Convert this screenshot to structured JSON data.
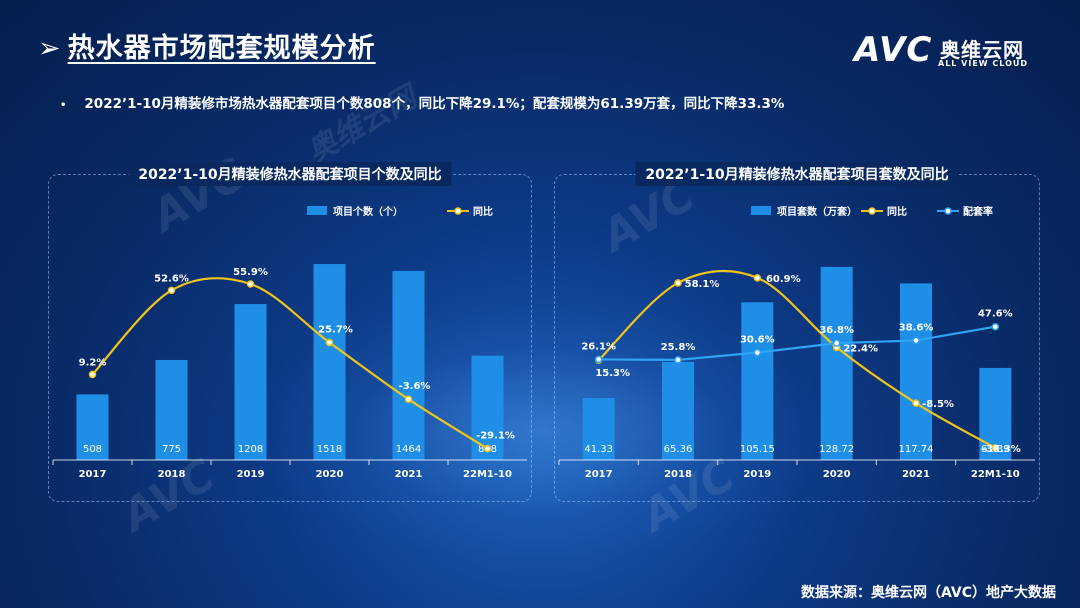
{
  "page": {
    "title": "热水器市场配套规模分析",
    "arrow": "➢",
    "summary_bullet": "•",
    "summary": "2022’1-10月精装修市场热水器配套项目个数808个，同比下降29.1%；配套规模为61.39万套，同比下降33.3%",
    "source": "数据来源：奥维云网（AVC）地产大数据"
  },
  "logo": {
    "mark": "AVC",
    "name_cn": "奥维云网",
    "name_en": "ALL VIEW CLOUD"
  },
  "colors": {
    "bar": "#1f8ee6",
    "yoy_line": "#f2c318",
    "rate_line": "#2fa4f2",
    "panel_border": "#a0c8ff"
  },
  "chart_data": [
    {
      "type": "bar",
      "title": "2022’1-10月精装修热水器配套项目个数及同比",
      "categories": [
        "2017",
        "2018",
        "2019",
        "2020",
        "2021",
        "22M1-10"
      ],
      "legend_position": "top-right",
      "series": [
        {
          "name": "项目个数（个）",
          "type": "bar",
          "values": [
            508,
            775,
            1208,
            1518,
            1464,
            808
          ],
          "labels": [
            "508",
            "775",
            "1208",
            "1518",
            "1464",
            "808"
          ]
        },
        {
          "name": "同比",
          "type": "line",
          "values": [
            9.2,
            52.6,
            55.9,
            25.7,
            -3.6,
            -29.1
          ],
          "labels": [
            "9.2%",
            "52.6%",
            "55.9%",
            "25.7%",
            "-3.6%",
            "-29.1%"
          ]
        }
      ],
      "bar_axis_range": [
        0,
        1650
      ],
      "line_axis_range": [
        -35,
        75
      ],
      "grid": false
    },
    {
      "type": "bar",
      "title": "2022’1-10月精装修热水器配套项目套数及同比",
      "categories": [
        "2017",
        "2018",
        "2019",
        "2020",
        "2021",
        "22M1-10"
      ],
      "legend_position": "top-right",
      "series": [
        {
          "name": "项目套数（万套）",
          "type": "bar",
          "values": [
            41.33,
            65.36,
            105.15,
            128.72,
            117.74,
            61.39
          ],
          "labels": [
            "41.33",
            "65.36",
            "105.15",
            "128.72",
            "117.74",
            "61.39"
          ]
        },
        {
          "name": "同比",
          "type": "line",
          "values": [
            15.3,
            58.1,
            60.9,
            22.4,
            -8.5,
            -33.3
          ],
          "labels": [
            "15.3%",
            "58.1%",
            "60.9%",
            "22.4%",
            "-8.5%",
            "-33.3%"
          ]
        },
        {
          "name": "配套率",
          "type": "line",
          "values": [
            26.1,
            25.8,
            30.6,
            36.8,
            38.6,
            47.6
          ],
          "labels": [
            "26.1%",
            "25.8%",
            "30.6%",
            "36.8%",
            "38.6%",
            "47.6%"
          ]
        }
      ],
      "bar_axis_range": [
        0,
        142
      ],
      "line_axis_range": [
        -40,
        78
      ],
      "rate_axis_range": [
        -40,
        100
      ],
      "grid": false
    }
  ]
}
